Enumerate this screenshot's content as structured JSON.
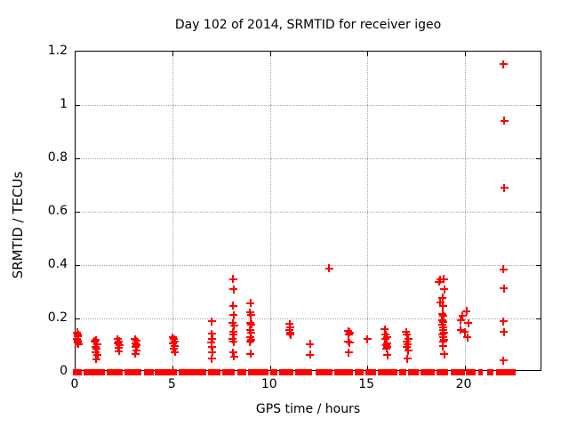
{
  "colors": {
    "marker": "#ff0000",
    "grid": "#a5a5a5",
    "frame": "#000000",
    "background": "#ffffff"
  },
  "chart_data": {
    "type": "scatter",
    "title": "Day 102 of 2014, SRMTID for receiver igeo",
    "xlabel": "GPS time / hours",
    "ylabel": "SRMTID / TECUs",
    "xlim": [
      0,
      24
    ],
    "ylim": [
      0,
      1.2
    ],
    "xticks": [
      0,
      5,
      10,
      15,
      20
    ],
    "xtick_labels": [
      "0",
      "5",
      "10",
      "15",
      "20"
    ],
    "yticks": [
      0,
      0.2,
      0.4,
      0.6,
      0.8,
      1,
      1.2
    ],
    "ytick_labels": [
      "0",
      "0.2",
      "0.4",
      "0.6",
      "0.8",
      "1",
      "1.2"
    ],
    "grid": "dotted",
    "legend": "none",
    "marker": "plus",
    "marker_color": "#ff0000",
    "points": [
      [
        0.08,
        0.148
      ],
      [
        0.12,
        0.14
      ],
      [
        0.1,
        0.132
      ],
      [
        0.08,
        0.125
      ],
      [
        0.12,
        0.118
      ],
      [
        0.1,
        0.11
      ],
      [
        0.14,
        0.105
      ],
      [
        0.98,
        0.115
      ],
      [
        1.05,
        0.12
      ],
      [
        1.1,
        0.105
      ],
      [
        1.02,
        0.095
      ],
      [
        1.08,
        0.088
      ],
      [
        1.05,
        0.075
      ],
      [
        1.12,
        0.065
      ],
      [
        1.07,
        0.048
      ],
      [
        2.15,
        0.123
      ],
      [
        2.22,
        0.115
      ],
      [
        2.18,
        0.107
      ],
      [
        2.25,
        0.1
      ],
      [
        2.2,
        0.09
      ],
      [
        2.22,
        0.078
      ],
      [
        3.05,
        0.123
      ],
      [
        3.12,
        0.116
      ],
      [
        3.08,
        0.108
      ],
      [
        3.15,
        0.1
      ],
      [
        3.1,
        0.092
      ],
      [
        3.12,
        0.08
      ],
      [
        3.08,
        0.068
      ],
      [
        5.0,
        0.13
      ],
      [
        5.06,
        0.122
      ],
      [
        5.1,
        0.114
      ],
      [
        5.02,
        0.106
      ],
      [
        5.08,
        0.098
      ],
      [
        5.05,
        0.088
      ],
      [
        5.1,
        0.075
      ],
      [
        7.0,
        0.19
      ],
      [
        7.0,
        0.142
      ],
      [
        7.02,
        0.125
      ],
      [
        6.98,
        0.11
      ],
      [
        7.0,
        0.095
      ],
      [
        7.02,
        0.075
      ],
      [
        7.0,
        0.05
      ],
      [
        8.1,
        0.347
      ],
      [
        8.12,
        0.31
      ],
      [
        8.1,
        0.247
      ],
      [
        8.12,
        0.213
      ],
      [
        8.07,
        0.183
      ],
      [
        8.14,
        0.172
      ],
      [
        8.1,
        0.15
      ],
      [
        8.13,
        0.14
      ],
      [
        8.08,
        0.122
      ],
      [
        8.12,
        0.112
      ],
      [
        8.1,
        0.072
      ],
      [
        8.14,
        0.058
      ],
      [
        9.0,
        0.257
      ],
      [
        8.98,
        0.222
      ],
      [
        9.02,
        0.212
      ],
      [
        9.0,
        0.185
      ],
      [
        9.04,
        0.178
      ],
      [
        8.98,
        0.156
      ],
      [
        9.02,
        0.146
      ],
      [
        9.0,
        0.131
      ],
      [
        9.04,
        0.121
      ],
      [
        8.98,
        0.113
      ],
      [
        9.0,
        0.067
      ],
      [
        11.0,
        0.18
      ],
      [
        11.02,
        0.168
      ],
      [
        11.0,
        0.157
      ],
      [
        11.02,
        0.146
      ],
      [
        11.05,
        0.14
      ],
      [
        12.05,
        0.105
      ],
      [
        12.05,
        0.065
      ],
      [
        13.05,
        0.387
      ],
      [
        14.02,
        0.152
      ],
      [
        14.08,
        0.147
      ],
      [
        14.05,
        0.14
      ],
      [
        14.02,
        0.115
      ],
      [
        14.08,
        0.11
      ],
      [
        14.05,
        0.073
      ],
      [
        15.0,
        0.122
      ],
      [
        15.9,
        0.16
      ],
      [
        15.95,
        0.14
      ],
      [
        16.0,
        0.131
      ],
      [
        15.92,
        0.122
      ],
      [
        16.02,
        0.107
      ],
      [
        15.96,
        0.1
      ],
      [
        16.0,
        0.094
      ],
      [
        15.98,
        0.087
      ],
      [
        16.04,
        0.063
      ],
      [
        17.0,
        0.15
      ],
      [
        17.05,
        0.14
      ],
      [
        17.1,
        0.125
      ],
      [
        17.03,
        0.115
      ],
      [
        17.08,
        0.105
      ],
      [
        17.02,
        0.095
      ],
      [
        17.1,
        0.08
      ],
      [
        17.06,
        0.05
      ],
      [
        18.94,
        0.348
      ],
      [
        18.76,
        0.346
      ],
      [
        18.68,
        0.338
      ],
      [
        18.95,
        0.31
      ],
      [
        18.86,
        0.277
      ],
      [
        18.76,
        0.26
      ],
      [
        18.9,
        0.247
      ],
      [
        18.87,
        0.218
      ],
      [
        18.92,
        0.21
      ],
      [
        18.85,
        0.195
      ],
      [
        18.9,
        0.186
      ],
      [
        18.87,
        0.176
      ],
      [
        18.92,
        0.166
      ],
      [
        18.88,
        0.157
      ],
      [
        18.93,
        0.148
      ],
      [
        18.87,
        0.139
      ],
      [
        18.9,
        0.13
      ],
      [
        18.93,
        0.121
      ],
      [
        18.88,
        0.112
      ],
      [
        18.9,
        0.096
      ],
      [
        18.95,
        0.066
      ],
      [
        20.1,
        0.227
      ],
      [
        19.9,
        0.21
      ],
      [
        19.8,
        0.193
      ],
      [
        20.2,
        0.183
      ],
      [
        19.8,
        0.157
      ],
      [
        20.0,
        0.15
      ],
      [
        20.15,
        0.13
      ],
      [
        22.0,
        1.153
      ],
      [
        22.05,
        0.941
      ],
      [
        22.05,
        0.69
      ],
      [
        22.0,
        0.385
      ],
      [
        22.02,
        0.313
      ],
      [
        22.0,
        0.19
      ],
      [
        22.02,
        0.15
      ],
      [
        22.0,
        0.042
      ]
    ],
    "zero_band_segments": [
      [
        -0.15,
        0.32
      ],
      [
        0.41,
        1.5
      ],
      [
        1.59,
        2.41
      ],
      [
        2.5,
        3.36
      ],
      [
        3.5,
        4.0
      ],
      [
        4.09,
        5.23
      ],
      [
        5.32,
        6.73
      ],
      [
        6.82,
        7.45
      ],
      [
        7.55,
        8.18
      ],
      [
        8.32,
        8.77
      ],
      [
        8.86,
        9.91
      ],
      [
        10.0,
        10.36
      ],
      [
        10.45,
        11.18
      ],
      [
        11.27,
        12.18
      ],
      [
        12.32,
        13.23
      ],
      [
        13.32,
        14.27
      ],
      [
        14.36,
        14.82
      ],
      [
        14.91,
        15.45
      ],
      [
        15.55,
        16.55
      ],
      [
        16.64,
        17.0
      ],
      [
        17.09,
        17.64
      ],
      [
        17.73,
        18.45
      ],
      [
        18.55,
        19.14
      ],
      [
        19.27,
        20.0
      ],
      [
        20.09,
        20.59
      ],
      [
        20.73,
        20.95
      ],
      [
        21.18,
        21.5
      ],
      [
        21.64,
        22.64
      ]
    ]
  }
}
